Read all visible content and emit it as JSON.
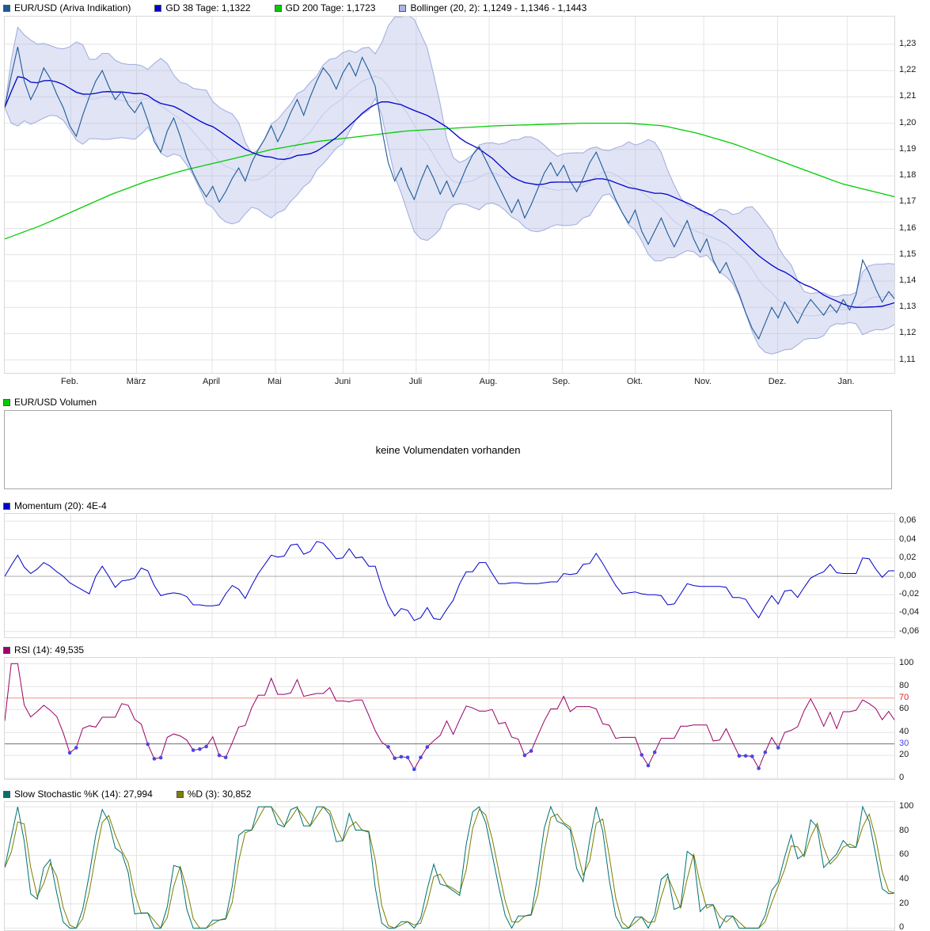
{
  "volume": {
    "empty_text": "keine Volumendaten vorhanden"
  },
  "legends": {
    "main": [
      {
        "label": "EUR/USD (Ariva Indikation)",
        "color": "#1e5a96"
      },
      {
        "label": "GD 38 Tage: 1,1322",
        "color": "#0000cc"
      },
      {
        "label": "GD 200 Tage: 1,1723",
        "color": "#00cc00"
      },
      {
        "label": "Bollinger (20, 2): 1,1249 - 1,1346 - 1,1443",
        "color": "#aab4e6"
      }
    ],
    "volume": [
      {
        "label": "EUR/USD Volumen",
        "color": "#00cc00"
      }
    ],
    "momentum": [
      {
        "label": "Momentum (20): 4E-4",
        "color": "#0000cc"
      }
    ],
    "rsi": [
      {
        "label": "RSI (14): 49,535",
        "color": "#990066"
      }
    ],
    "stochastic": [
      {
        "label": "Slow Stochastic %K (14): 27,994",
        "color": "#007070"
      },
      {
        "label": "%D (3): 30,852",
        "color": "#7d7d00"
      }
    ]
  },
  "chart_data": {
    "type": "line",
    "title": "EUR/USD (Ariva Indikation)",
    "x_axis": {
      "months": [
        "Feb.",
        "März",
        "April",
        "Mai",
        "Juni",
        "Juli",
        "Aug.",
        "Sep.",
        "Okt.",
        "Nov.",
        "Dez.",
        "Jan."
      ],
      "month_fracs": [
        0.074,
        0.148,
        0.233,
        0.304,
        0.38,
        0.462,
        0.544,
        0.626,
        0.708,
        0.785,
        0.868,
        0.946
      ]
    },
    "price_axis": {
      "tick_labels": [
        "1,23",
        "1,22",
        "1,21",
        "1,20",
        "1,19",
        "1,18",
        "1,17",
        "1,16",
        "1,15",
        "1,14",
        "1,13",
        "1,12",
        "1,11"
      ],
      "min": 1.1045,
      "max": 1.2405
    },
    "series": {
      "price": {
        "name": "EUR/USD (Ariva Indikation)",
        "color": "#1e5a96",
        "values": [
          1.206,
          1.218,
          1.229,
          1.216,
          1.209,
          1.214,
          1.221,
          1.217,
          1.211,
          1.206,
          1.199,
          1.195,
          1.203,
          1.21,
          1.216,
          1.22,
          1.214,
          1.209,
          1.212,
          1.207,
          1.204,
          1.208,
          1.201,
          1.193,
          1.189,
          1.197,
          1.202,
          1.195,
          1.187,
          1.181,
          1.176,
          1.172,
          1.176,
          1.17,
          1.174,
          1.179,
          1.183,
          1.178,
          1.185,
          1.19,
          1.194,
          1.199,
          1.193,
          1.198,
          1.204,
          1.209,
          1.203,
          1.21,
          1.216,
          1.221,
          1.218,
          1.213,
          1.219,
          1.223,
          1.218,
          1.225,
          1.22,
          1.214,
          1.198,
          1.185,
          1.178,
          1.183,
          1.176,
          1.171,
          1.178,
          1.184,
          1.179,
          1.173,
          1.178,
          1.172,
          1.177,
          1.183,
          1.188,
          1.191,
          1.186,
          1.181,
          1.176,
          1.171,
          1.166,
          1.171,
          1.164,
          1.169,
          1.175,
          1.181,
          1.185,
          1.18,
          1.184,
          1.178,
          1.174,
          1.179,
          1.185,
          1.189,
          1.183,
          1.177,
          1.171,
          1.166,
          1.162,
          1.167,
          1.159,
          1.154,
          1.159,
          1.164,
          1.158,
          1.153,
          1.158,
          1.163,
          1.156,
          1.151,
          1.156,
          1.148,
          1.143,
          1.147,
          1.141,
          1.135,
          1.128,
          1.122,
          1.118,
          1.124,
          1.13,
          1.126,
          1.132,
          1.128,
          1.124,
          1.129,
          1.133,
          1.13,
          1.127,
          1.131,
          1.128,
          1.133,
          1.129,
          1.135,
          1.148,
          1.143,
          1.137,
          1.132,
          1.136,
          1.133
        ]
      },
      "gd38": {
        "name": "GD 38 Tage",
        "current": "1,1322",
        "window_days": 38,
        "color": "#0000cc"
      },
      "gd200": {
        "name": "GD 200 Tage",
        "current": "1,1723",
        "window_days": 200,
        "color": "#00cc00",
        "points": [
          [
            0,
            1.156
          ],
          [
            0.04,
            1.161
          ],
          [
            0.08,
            1.167
          ],
          [
            0.12,
            1.173
          ],
          [
            0.16,
            1.178
          ],
          [
            0.2,
            1.182
          ],
          [
            0.25,
            1.186
          ],
          [
            0.3,
            1.19
          ],
          [
            0.35,
            1.193
          ],
          [
            0.4,
            1.195
          ],
          [
            0.45,
            1.197
          ],
          [
            0.5,
            1.198
          ],
          [
            0.55,
            1.199
          ],
          [
            0.6,
            1.1995
          ],
          [
            0.65,
            1.2
          ],
          [
            0.7,
            1.2
          ],
          [
            0.74,
            1.199
          ],
          [
            0.78,
            1.196
          ],
          [
            0.82,
            1.192
          ],
          [
            0.86,
            1.187
          ],
          [
            0.9,
            1.182
          ],
          [
            0.94,
            1.177
          ],
          [
            1,
            1.172
          ]
        ]
      },
      "bollinger": {
        "name": "Bollinger (20, 2)",
        "current": "1,1249 - 1,1346 - 1,1443",
        "window_days": 20,
        "sigma": 2,
        "fill": "rgba(165,178,225,0.35)",
        "edge_color": "#9fabdd",
        "mid_color": "#c3cbec"
      }
    },
    "momentum": {
      "name": "Momentum (20)",
      "current": "4E-4",
      "window_days": 20,
      "color": "#0000cc",
      "tick_labels": [
        "0,06",
        "0,04",
        "0,02",
        "0,00",
        "-0,02",
        "-0,04",
        "-0,06"
      ],
      "min": -0.068,
      "max": 0.068
    },
    "rsi": {
      "name": "RSI (14)",
      "current": "49,535",
      "window_days": 14,
      "color": "#990066",
      "overbought": 70,
      "oversold": 30,
      "dot_color": "#4646e6",
      "ticks": [
        {
          "label": "100"
        },
        {
          "label": "80"
        },
        {
          "label": "70",
          "label_color": "#dd2222",
          "line_color": "#f09090"
        },
        {
          "label": "60"
        },
        {
          "label": "40"
        },
        {
          "label": "30",
          "label_color": "#4444ee",
          "line_color": "#707070"
        },
        {
          "label": "20"
        },
        {
          "label": "0"
        }
      ],
      "min": -2,
      "max": 105
    },
    "stochastic": {
      "k_name": "Slow Stochastic %K (14)",
      "k_current": "27,994",
      "k_window_days": 14,
      "k_color": "#007070",
      "d_name": "%D (3)",
      "d_current": "30,852",
      "d_window_days": 3,
      "d_color": "#7d7d00",
      "tick_labels": [
        "100",
        "80",
        "60",
        "40",
        "20",
        "0"
      ],
      "min": -3,
      "max": 104
    },
    "trading_days_shown": 250
  }
}
